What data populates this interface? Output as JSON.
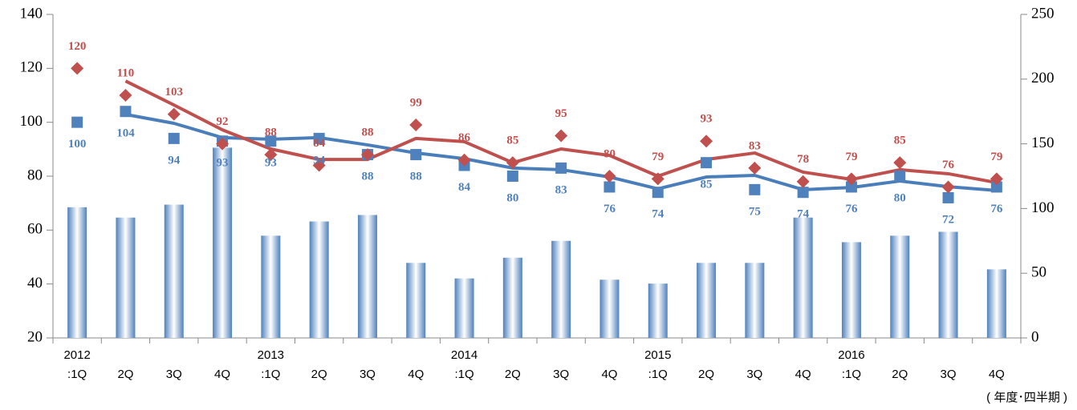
{
  "chart_data": {
    "type": "combo",
    "categories": [
      [
        "2012",
        ":1Q"
      ],
      [
        "2Q"
      ],
      [
        "3Q"
      ],
      [
        "4Q"
      ],
      [
        "2013",
        ":1Q"
      ],
      [
        "2Q"
      ],
      [
        "3Q"
      ],
      [
        "4Q"
      ],
      [
        "2014",
        ":1Q"
      ],
      [
        "2Q"
      ],
      [
        "3Q"
      ],
      [
        "4Q"
      ],
      [
        "2015",
        ":1Q"
      ],
      [
        "2Q"
      ],
      [
        "3Q"
      ],
      [
        "4Q"
      ],
      [
        "2016",
        ":1Q"
      ],
      [
        "2Q"
      ],
      [
        "3Q"
      ],
      [
        "4Q"
      ]
    ],
    "ylim": [
      20,
      140
    ],
    "yticks": [
      20,
      40,
      60,
      80,
      100,
      120,
      140
    ],
    "y2lim": [
      0,
      250
    ],
    "y2ticks": [
      0,
      50,
      100,
      150,
      200,
      250
    ],
    "note": "( 年度･四半期 )",
    "series": [
      {
        "type": "bar",
        "axis": "y2",
        "color": "#4f81bd",
        "values": [
          101,
          93,
          103,
          147,
          79,
          90,
          95,
          58,
          46,
          62,
          75,
          45,
          42,
          58,
          58,
          93,
          74,
          79,
          82,
          53
        ]
      },
      {
        "type": "line",
        "color": "#4a7ebb",
        "values": [
          null,
          102.9,
          99.6,
          94.3,
          93.7,
          94.3,
          91.6,
          88.6,
          86.5,
          83,
          82.4,
          79.7,
          75.3,
          79.7,
          80.3,
          75,
          75.8,
          78.2,
          76.1,
          74.7
        ]
      },
      {
        "type": "line",
        "color": "#c0504d",
        "values": [
          null,
          115.3,
          106.4,
          97.2,
          90.1,
          86.2,
          86.2,
          94,
          92.8,
          85,
          90.1,
          87.7,
          80,
          86.2,
          88.6,
          81.5,
          78.8,
          82.4,
          80.9,
          77.6
        ]
      },
      {
        "type": "scatter",
        "marker": "square",
        "label_position": "below",
        "color": "#4f81bd",
        "values": [
          100,
          104,
          94,
          93,
          93,
          94,
          88,
          88,
          84,
          80,
          83,
          76,
          74,
          85,
          75,
          74,
          76,
          80,
          72,
          76
        ]
      },
      {
        "type": "scatter",
        "marker": "diamond",
        "label_position": "above",
        "color": "#c0504d",
        "values": [
          120,
          110,
          103,
          92,
          88,
          84,
          88,
          99,
          86,
          85,
          95,
          80,
          79,
          93,
          83,
          78,
          79,
          85,
          76,
          79
        ]
      }
    ]
  }
}
